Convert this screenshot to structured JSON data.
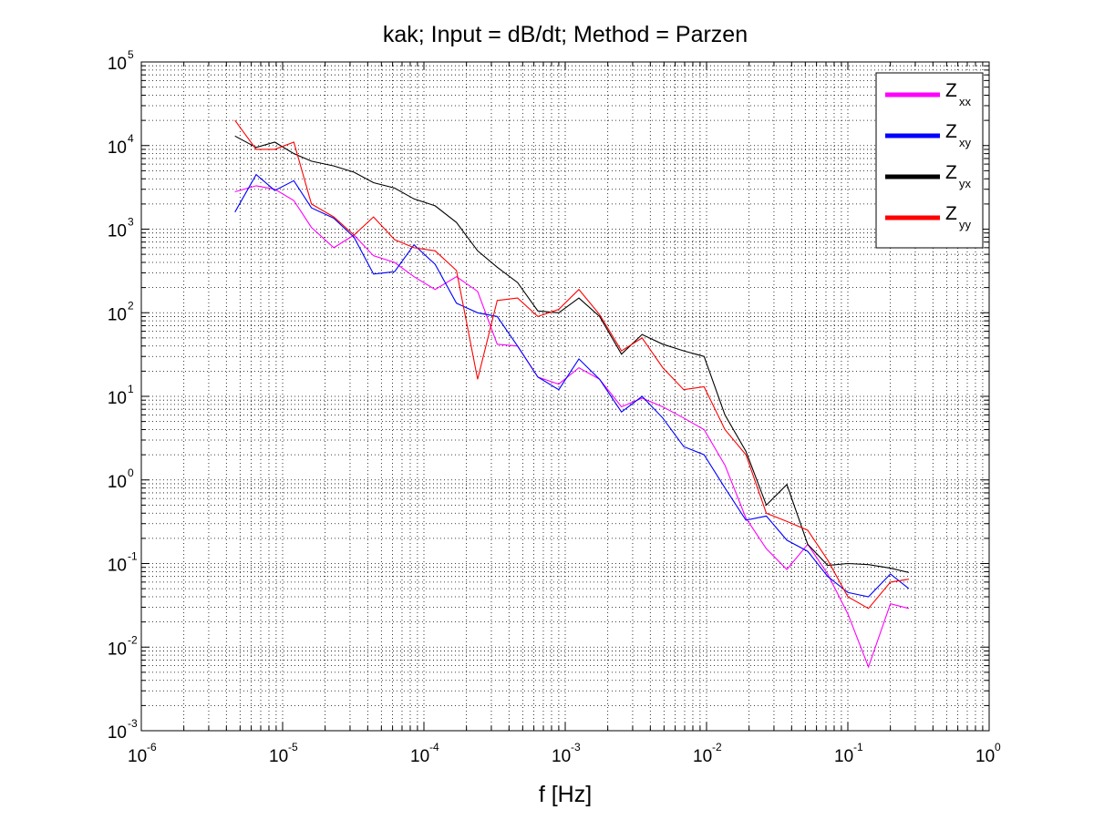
{
  "chart_data": {
    "type": "line",
    "title": "kak; Input = dB/dt; Method = Parzen",
    "xlabel": "f [Hz]",
    "ylabel": "",
    "x_scale": "log",
    "y_scale": "log",
    "xlim": [
      1e-06,
      1
    ],
    "ylim": [
      0.001,
      100000
    ],
    "grid": true,
    "legend_position": "top-right",
    "x_tick_labels": [
      {
        "base": "10",
        "exp": "-6"
      },
      {
        "base": "10",
        "exp": "-5"
      },
      {
        "base": "10",
        "exp": "-4"
      },
      {
        "base": "10",
        "exp": "-3"
      },
      {
        "base": "10",
        "exp": "-2"
      },
      {
        "base": "10",
        "exp": "-1"
      },
      {
        "base": "10",
        "exp": "0"
      }
    ],
    "y_tick_labels": [
      {
        "base": "10",
        "exp": "-3"
      },
      {
        "base": "10",
        "exp": "-2"
      },
      {
        "base": "10",
        "exp": "-1"
      },
      {
        "base": "10",
        "exp": "0"
      },
      {
        "base": "10",
        "exp": "1"
      },
      {
        "base": "10",
        "exp": "2"
      },
      {
        "base": "10",
        "exp": "3"
      },
      {
        "base": "10",
        "exp": "4"
      },
      {
        "base": "10",
        "exp": "5"
      }
    ],
    "x": [
      4.6e-06,
      6.5e-06,
      8.8e-06,
      1.2e-05,
      1.6e-05,
      2.3e-05,
      3.2e-05,
      4.4e-05,
      6.2e-05,
      8.5e-05,
      0.00012,
      0.00017,
      0.00024,
      0.00033,
      0.00046,
      0.00064,
      0.0009,
      0.00125,
      0.00175,
      0.0025,
      0.0035,
      0.0049,
      0.0069,
      0.0096,
      0.0135,
      0.019,
      0.0265,
      0.037,
      0.052,
      0.072,
      0.1,
      0.14,
      0.2,
      0.27
    ],
    "series": [
      {
        "name": "Z_xx",
        "label_main": "Z",
        "label_sub": "xx",
        "color": "#ff00ff",
        "values": [
          2800,
          3300,
          3000,
          2200,
          1050,
          600,
          850,
          480,
          400,
          270,
          190,
          270,
          180,
          42,
          40,
          17,
          14,
          22,
          16,
          7.5,
          9.5,
          7.5,
          5.5,
          4.0,
          1.5,
          0.35,
          0.15,
          0.085,
          0.17,
          0.075,
          0.025,
          0.0058,
          0.033,
          0.029
        ]
      },
      {
        "name": "Z_xy",
        "label_main": "Z",
        "label_sub": "xy",
        "color": "#0000ff",
        "values": [
          1600,
          4500,
          2900,
          3800,
          1800,
          1350,
          800,
          290,
          310,
          650,
          380,
          130,
          100,
          90,
          40,
          17,
          12,
          28,
          16,
          6.5,
          10,
          5.5,
          2.5,
          2.0,
          0.8,
          0.33,
          0.37,
          0.19,
          0.14,
          0.07,
          0.045,
          0.04,
          0.075,
          0.05
        ]
      },
      {
        "name": "Z_yx",
        "label_main": "Z",
        "label_sub": "yx",
        "color": "#000000",
        "values": [
          13000,
          9500,
          11000,
          8000,
          6500,
          5700,
          4800,
          3600,
          3100,
          2300,
          1900,
          1200,
          550,
          350,
          230,
          105,
          100,
          150,
          90,
          32,
          55,
          42,
          35,
          30,
          6,
          2.2,
          0.5,
          0.88,
          0.17,
          0.095,
          0.1,
          0.097,
          0.088,
          0.078
        ]
      },
      {
        "name": "Z_yy",
        "label_main": "Z",
        "label_sub": "yy",
        "color": "#ff0000",
        "values": [
          20000,
          9000,
          9000,
          11000,
          2000,
          1400,
          850,
          1400,
          750,
          600,
          550,
          320,
          16,
          140,
          150,
          90,
          110,
          190,
          95,
          35,
          50,
          22,
          12,
          13,
          4,
          2,
          0.4,
          0.32,
          0.25,
          0.11,
          0.04,
          0.029,
          0.06,
          0.065
        ]
      }
    ]
  }
}
